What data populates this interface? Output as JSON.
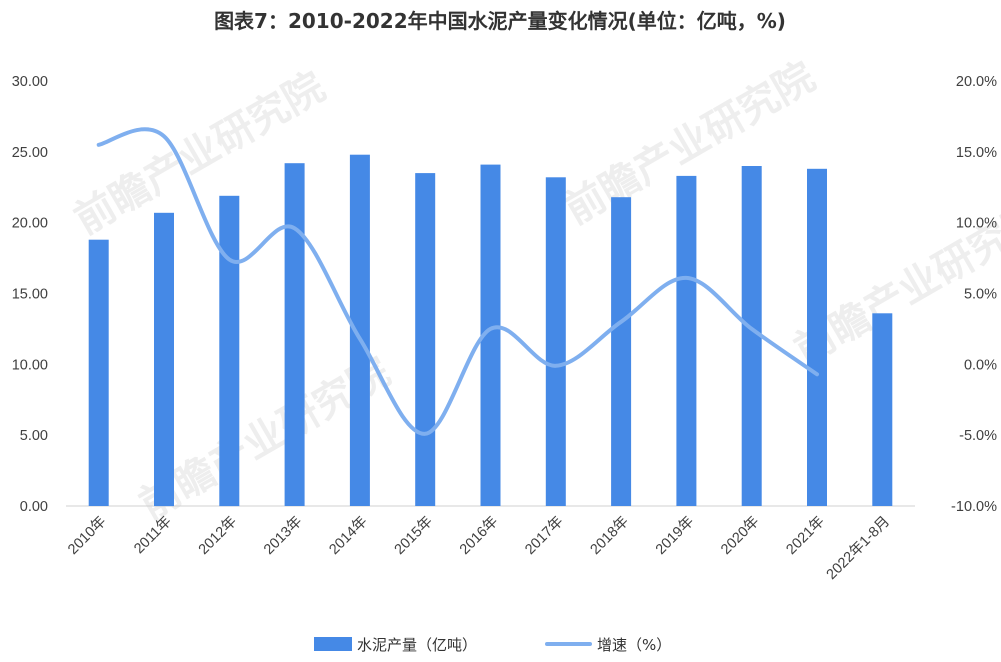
{
  "chart_data": {
    "type": "bar",
    "title": "图表7：2010-2022年中国水泥产量变化情况(单位：亿吨，%)",
    "categories": [
      "2010年",
      "2011年",
      "2012年",
      "2013年",
      "2014年",
      "2015年",
      "2016年",
      "2017年",
      "2018年",
      "2019年",
      "2020年",
      "2021年",
      "2022年1-8月"
    ],
    "series": [
      {
        "name": "水泥产量（亿吨）",
        "type": "bar",
        "axis": "left",
        "color": "#4589e6",
        "values": [
          18.8,
          20.7,
          21.9,
          24.2,
          24.8,
          23.5,
          24.1,
          23.2,
          21.8,
          23.3,
          24.0,
          23.8,
          13.6
        ]
      },
      {
        "name": "增速（%）",
        "type": "line",
        "axis": "right",
        "smooth": true,
        "color": "#7fafef",
        "values": [
          15.5,
          16.1,
          7.4,
          9.6,
          1.8,
          -4.9,
          2.5,
          -0.1,
          3.0,
          6.1,
          2.5,
          -0.7,
          null
        ]
      }
    ],
    "y_left": {
      "min": 0,
      "max": 30,
      "step": 5,
      "tick_labels": [
        "0.00",
        "5.00",
        "10.00",
        "15.00",
        "20.00",
        "25.00",
        "30.00"
      ]
    },
    "y_right": {
      "min": -10,
      "max": 20,
      "step": 5,
      "tick_labels": [
        "-10.0%",
        "-5.0%",
        "0.0%",
        "5.0%",
        "10.0%",
        "15.0%",
        "20.0%"
      ]
    },
    "grid": false,
    "legend": "bottom"
  },
  "watermark": "前瞻产业研究院"
}
